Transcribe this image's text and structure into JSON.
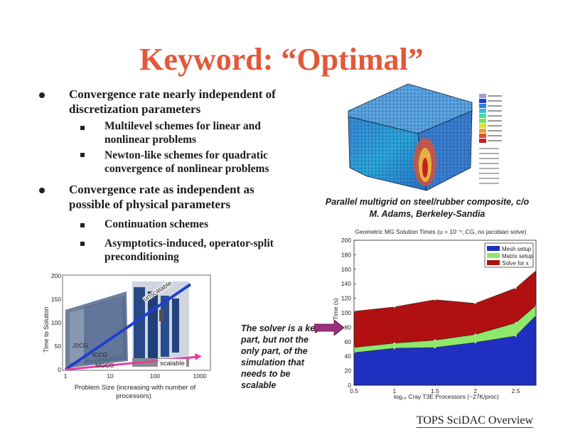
{
  "slide": {
    "title": "Keyword: “Optimal”",
    "bullets": [
      {
        "lines": [
          "Convergence rate nearly independent of",
          "discretization parameters"
        ],
        "subs": [
          {
            "lines": [
              "Multilevel schemes for linear and",
              "nonlinear problems"
            ]
          },
          {
            "lines": [
              "Newton-like schemes for quadratic",
              "convergence of nonlinear problems"
            ]
          }
        ]
      },
      {
        "lines": [
          "Convergence rate as independent as",
          "possible of physical parameters"
        ],
        "subs": [
          {
            "lines": [
              "Continuation schemes"
            ]
          },
          {
            "lines": [
              "Asymptotics-induced, operator-split",
              "preconditioning"
            ]
          }
        ]
      }
    ],
    "caption_lines": [
      "Parallel multigrid on steel/rubber composite, c/o",
      "M. Adams, Berkeley-Sandia"
    ],
    "callout_lines": [
      "The solver is a key",
      "part, but  not the",
      "only part, of the",
      "simulation that",
      "needs to be",
      "scalable"
    ],
    "footer": "TOPS SciDAC Overview"
  },
  "mesh_image": {
    "legend_colors": [
      "#9e9ec8",
      "#1f3fc6",
      "#2f7fe8",
      "#38b8e8",
      "#48d8a0",
      "#7ae060",
      "#d8e040",
      "#f0a030",
      "#e05030",
      "#c82020"
    ]
  },
  "scaling_chart": {
    "ylabel": "Time to Solution",
    "xlabel_lines": [
      "Problem Size (increasing with number of",
      "processors)"
    ],
    "unscalable_label": "unscalable",
    "scalable_label": "scalable",
    "y_ticks": [
      "0",
      "50",
      "100",
      "150",
      "200"
    ],
    "x_ticks": [
      "1",
      "10",
      "100",
      "1000"
    ],
    "machine_labels": [
      "J2CG",
      "ICCG",
      "MGCG"
    ]
  },
  "chart_data": {
    "type": "area",
    "title": "Geometric MG Solution Times (u = 10⁻⁶; CG, no jacobian solve)",
    "xlabel": "log₁₀ Cray T3E Processors (~27K/proc)",
    "ylabel": "Time (s)",
    "xlim": [
      0.5,
      2.75
    ],
    "ylim": [
      0,
      200
    ],
    "x_ticks": [
      "0.5",
      "1",
      "1.5",
      "2",
      "2.5"
    ],
    "y_ticks": [
      "0",
      "20",
      "40",
      "60",
      "80",
      "100",
      "120",
      "140",
      "160",
      "180",
      "200"
    ],
    "x": [
      0.5,
      1.0,
      1.5,
      2.0,
      2.5,
      2.75
    ],
    "series": [
      {
        "name": "Mesh setup",
        "color": "#1f2fc0",
        "values": [
          45,
          51,
          52,
          59,
          68,
          96
        ]
      },
      {
        "name": "Matrix setup",
        "color": "#8ee86a",
        "values": [
          52,
          58,
          62,
          70,
          86,
          110
        ]
      },
      {
        "name": "Solve for x",
        "color": "#b01010",
        "values": [
          102,
          108,
          118,
          113,
          134,
          158
        ]
      }
    ],
    "legend": "top-right",
    "grid": false
  }
}
